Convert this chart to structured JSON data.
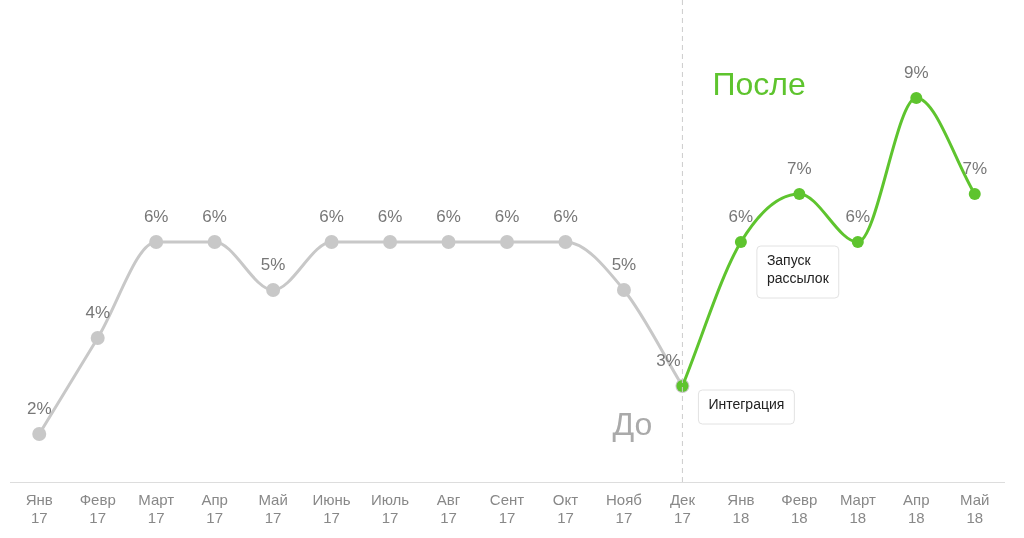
{
  "chart_data": {
    "type": "line",
    "categories": [
      "Янв 17",
      "Февр 17",
      "Март 17",
      "Апр 17",
      "Май 17",
      "Июнь 17",
      "Июль 17",
      "Авг 17",
      "Сент 17",
      "Окт 17",
      "Нояб 17",
      "Дек 17",
      "Янв 18",
      "Февр 18",
      "Март 18",
      "Апр 18",
      "Май 18"
    ],
    "series": [
      {
        "name": "До",
        "color": "#c8c8c8",
        "values": [
          2,
          4,
          6,
          6,
          5,
          6,
          6,
          6,
          6,
          6,
          5,
          3,
          null,
          null,
          null,
          null,
          null
        ],
        "value_labels": [
          "2%",
          "4%",
          "6%",
          "6%",
          "5%",
          "6%",
          "6%",
          "6%",
          "6%",
          "6%",
          "5%",
          "3%",
          null,
          null,
          null,
          null,
          null
        ]
      },
      {
        "name": "После",
        "color": "#5ec42e",
        "values": [
          null,
          null,
          null,
          null,
          null,
          null,
          null,
          null,
          null,
          null,
          null,
          3,
          6,
          7,
          6,
          9,
          7
        ],
        "value_labels": [
          null,
          null,
          null,
          null,
          null,
          null,
          null,
          null,
          null,
          null,
          null,
          null,
          "6%",
          "7%",
          "6%",
          "9%",
          "7%"
        ]
      }
    ],
    "marker": "circle",
    "grid": false,
    "legend": false,
    "tick_labels": "x",
    "ref_lines": [
      {
        "axis": "x",
        "value": "Дек 17",
        "color": "#cccccc",
        "line_style": "dashed"
      }
    ],
    "annotations": [
      {
        "text": "Интеграция",
        "x": "Дек 17",
        "y": 3
      },
      {
        "text": "Запуск рассылок",
        "x": "Янв 18",
        "y": 6
      }
    ]
  }
}
